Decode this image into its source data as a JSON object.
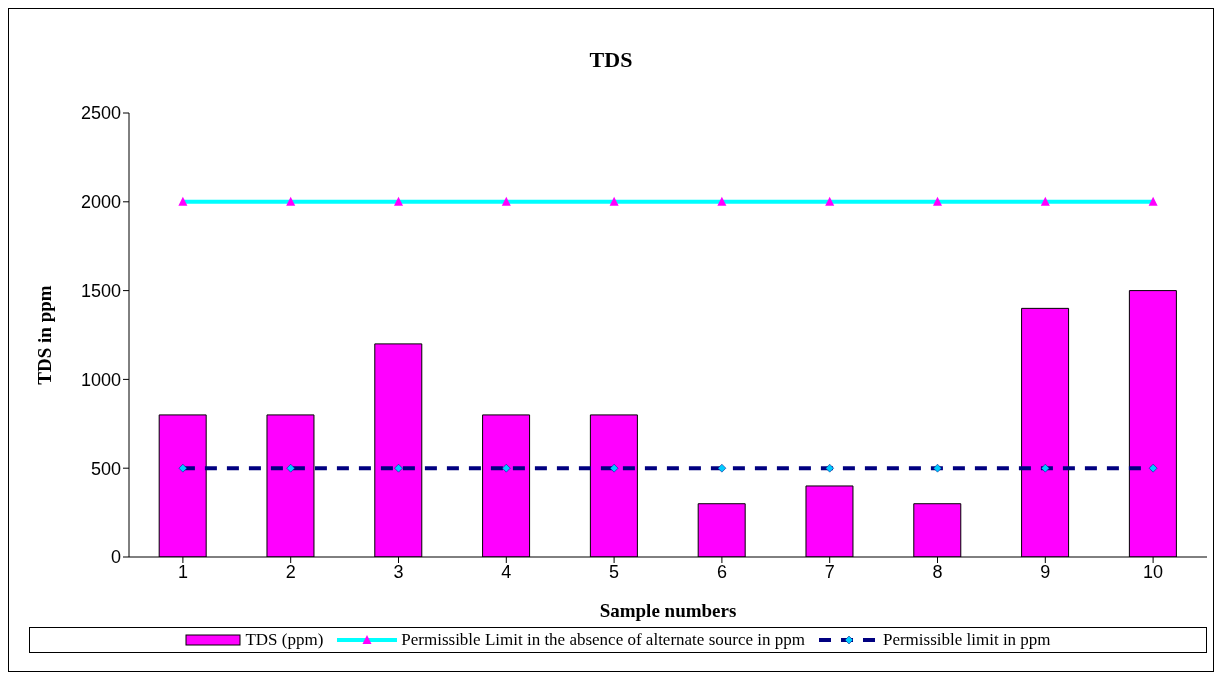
{
  "chart_data": {
    "type": "bar",
    "title": "TDS",
    "xlabel": "Sample numbers",
    "ylabel": "TDS in ppm",
    "categories": [
      "1",
      "2",
      "3",
      "4",
      "5",
      "6",
      "7",
      "8",
      "9",
      "10"
    ],
    "series": [
      {
        "name": "TDS (ppm)",
        "color": "#ff00ff",
        "values": [
          800,
          800,
          1200,
          800,
          800,
          300,
          400,
          300,
          1400,
          1500
        ]
      },
      {
        "name": "Permissible Limit in the absence of alternate source in ppm",
        "type": "line",
        "color": "#00ffff",
        "marker": "triangle",
        "line_style": "solid",
        "values": [
          2000,
          2000,
          2000,
          2000,
          2000,
          2000,
          2000,
          2000,
          2000,
          2000
        ]
      },
      {
        "name": "Permissible limit in ppm",
        "type": "line",
        "color": "#000080",
        "marker": "diamond",
        "line_style": "dashed",
        "values": [
          500,
          500,
          500,
          500,
          500,
          500,
          500,
          500,
          500,
          500
        ]
      }
    ],
    "ylim": [
      0,
      2500
    ],
    "yticks": [
      0,
      500,
      1000,
      1500,
      2000,
      2500
    ],
    "legend": "bottom"
  }
}
